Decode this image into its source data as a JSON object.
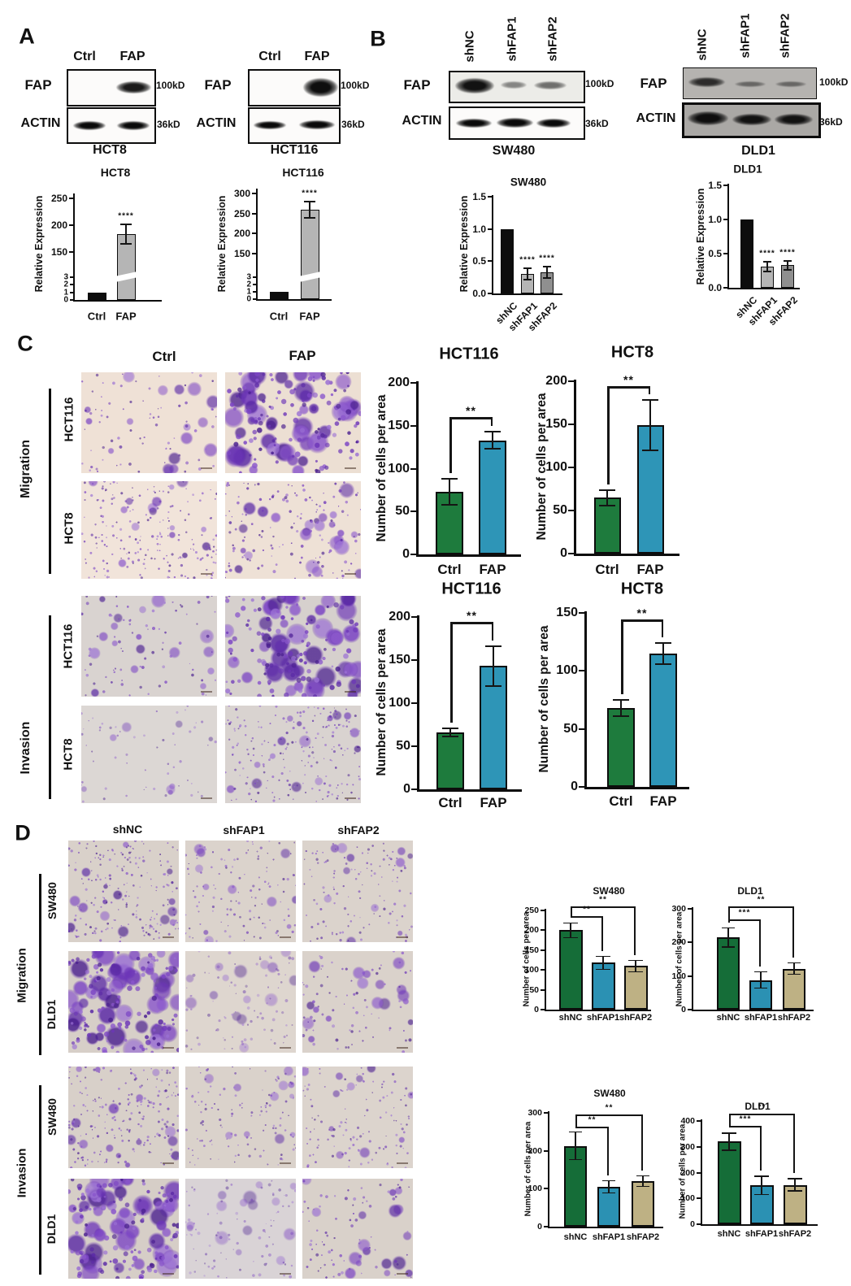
{
  "figure": {
    "panel_a": {
      "label": "A",
      "groups": [
        {
          "cell_line": "HCT8",
          "lanes": [
            "Ctrl",
            "FAP"
          ],
          "rows": [
            {
              "protein": "FAP",
              "mw": "100kD"
            },
            {
              "protein": "ACTIN",
              "mw": "36kD"
            }
          ]
        },
        {
          "cell_line": "HCT116",
          "lanes": [
            "Ctrl",
            "FAP"
          ],
          "rows": [
            {
              "protein": "FAP",
              "mw": "100kD"
            },
            {
              "protein": "ACTIN",
              "mw": "36kD"
            }
          ]
        }
      ]
    },
    "panel_b": {
      "label": "B",
      "groups": [
        {
          "cell_line": "SW480",
          "lanes": [
            "shNC",
            "shFAP1",
            "shFAP2"
          ],
          "rows": [
            {
              "protein": "FAP",
              "mw": "100kD"
            },
            {
              "protein": "ACTIN",
              "mw": "36kD"
            }
          ]
        },
        {
          "cell_line": "DLD1",
          "lanes": [
            "shNC",
            "shFAP1",
            "shFAP2"
          ],
          "rows": [
            {
              "protein": "FAP",
              "mw": "100kD"
            },
            {
              "protein": "ACTIN",
              "mw": "36kD"
            }
          ]
        }
      ]
    },
    "panel_c": {
      "label": "C",
      "col_headers": [
        "Ctrl",
        "FAP"
      ],
      "groups": [
        {
          "name": "Migration",
          "rows": [
            "HCT116",
            "HCT8"
          ]
        },
        {
          "name": "Invasion",
          "rows": [
            "HCT116",
            "HCT8"
          ]
        }
      ],
      "images": [
        {
          "assay": "Migration",
          "cell_line": "HCT116",
          "condition": "Ctrl",
          "density": "medium-clusters",
          "bg": "#efe1d6"
        },
        {
          "assay": "Migration",
          "cell_line": "HCT116",
          "condition": "FAP",
          "density": "very-dense",
          "bg": "#ecdfd3"
        },
        {
          "assay": "Migration",
          "cell_line": "HCT8",
          "condition": "Ctrl",
          "density": "dense-fine",
          "bg": "#f1e4da"
        },
        {
          "assay": "Migration",
          "cell_line": "HCT8",
          "condition": "FAP",
          "density": "dense",
          "bg": "#eee1d6"
        },
        {
          "assay": "Invasion",
          "cell_line": "HCT116",
          "condition": "Ctrl",
          "density": "medium-clusters",
          "bg": "#d9d3d0"
        },
        {
          "assay": "Invasion",
          "cell_line": "HCT116",
          "condition": "FAP",
          "density": "very-dense",
          "bg": "#d6d0cd"
        },
        {
          "assay": "Invasion",
          "cell_line": "HCT8",
          "condition": "Ctrl",
          "density": "sparse",
          "bg": "#dcd7d4"
        },
        {
          "assay": "Invasion",
          "cell_line": "HCT8",
          "condition": "FAP",
          "density": "dense-fine",
          "bg": "#d9d3d0"
        }
      ]
    },
    "panel_d": {
      "label": "D",
      "col_headers": [
        "shNC",
        "shFAP1",
        "shFAP2"
      ],
      "groups": [
        {
          "name": "Migration",
          "rows": [
            "SW480",
            "DLD1"
          ]
        },
        {
          "name": "Invasion",
          "rows": [
            "SW480",
            "DLD1"
          ]
        }
      ],
      "images": [
        {
          "assay": "Migration",
          "cell_line": "SW480",
          "condition": "shNC",
          "density": "dense-fine",
          "bg": "#d9d1ca"
        },
        {
          "assay": "Migration",
          "cell_line": "SW480",
          "condition": "shFAP1",
          "density": "medium",
          "bg": "#dbd3cc"
        },
        {
          "assay": "Migration",
          "cell_line": "SW480",
          "condition": "shFAP2",
          "density": "medium",
          "bg": "#dbd3cc"
        },
        {
          "assay": "Migration",
          "cell_line": "DLD1",
          "condition": "shNC",
          "density": "very-dense",
          "bg": "#d7cfc8"
        },
        {
          "assay": "Migration",
          "cell_line": "DLD1",
          "condition": "shFAP1",
          "density": "medium-light",
          "bg": "#ded6cf"
        },
        {
          "assay": "Migration",
          "cell_line": "DLD1",
          "condition": "shFAP2",
          "density": "medium-clusters",
          "bg": "#dad2cb"
        },
        {
          "assay": "Invasion",
          "cell_line": "SW480",
          "condition": "shNC",
          "density": "dense-fine",
          "bg": "#d8d0c9"
        },
        {
          "assay": "Invasion",
          "cell_line": "SW480",
          "condition": "shFAP1",
          "density": "medium",
          "bg": "#dad2cb"
        },
        {
          "assay": "Invasion",
          "cell_line": "SW480",
          "condition": "shFAP2",
          "density": "medium",
          "bg": "#dcd4cd"
        },
        {
          "assay": "Invasion",
          "cell_line": "DLD1",
          "condition": "shNC",
          "density": "very-dense",
          "bg": "#d6cec7"
        },
        {
          "assay": "Invasion",
          "cell_line": "DLD1",
          "condition": "shFAP1",
          "density": "medium-light",
          "bg": "#d9d3d6"
        },
        {
          "assay": "Invasion",
          "cell_line": "DLD1",
          "condition": "shFAP2",
          "density": "medium-clusters",
          "bg": "#d9d1ca"
        }
      ]
    }
  },
  "chart_data": [
    {
      "id": "a-hct8",
      "type": "bar",
      "title": "HCT8",
      "ylabel": "Relative Expression",
      "categories": [
        "Ctrl",
        "FAP"
      ],
      "values": [
        1,
        183
      ],
      "errors": [
        0,
        20
      ],
      "bar_colors": [
        "#0d0d0d",
        "#b5b5b5"
      ],
      "broken_axis": true,
      "lower_ticks": [
        0,
        1,
        2,
        3
      ],
      "upper_ticks": [
        150,
        200,
        250
      ],
      "ylim": [
        0,
        250
      ],
      "sig": [
        {
          "bar": 1,
          "text": "****"
        }
      ]
    },
    {
      "id": "a-hct116",
      "type": "bar",
      "title": "HCT116",
      "ylabel": "Relative Expression",
      "categories": [
        "Ctrl",
        "FAP"
      ],
      "values": [
        1,
        260
      ],
      "errors": [
        0,
        22
      ],
      "bar_colors": [
        "#0d0d0d",
        "#b5b5b5"
      ],
      "broken_axis": true,
      "lower_ticks": [
        0,
        1,
        2,
        3
      ],
      "upper_ticks": [
        150,
        200,
        250,
        300
      ],
      "ylim": [
        0,
        300
      ],
      "sig": [
        {
          "bar": 1,
          "text": "****"
        }
      ]
    },
    {
      "id": "b-sw480",
      "type": "bar",
      "title": "SW480",
      "ylabel": "Relative Expression",
      "categories": [
        "shNC",
        "shFAP1",
        "shFAP2"
      ],
      "values": [
        1.0,
        0.3,
        0.33
      ],
      "errors": [
        0,
        0.1,
        0.1
      ],
      "bar_colors": [
        "#0d0d0d",
        "#b5b5b5",
        "#8f8f8f"
      ],
      "ticks": [
        0,
        0.5,
        1,
        1.5
      ],
      "tick_labels": [
        "0.0",
        "0.5",
        "1.0",
        "1.5"
      ],
      "ylim": [
        0,
        1.5
      ],
      "x_rotate": 45,
      "sig": [
        {
          "bar": 1,
          "text": "****"
        },
        {
          "bar": 2,
          "text": "****"
        }
      ]
    },
    {
      "id": "b-dld1",
      "type": "bar",
      "title": "DLD1",
      "ylabel": "Relative Expression",
      "categories": [
        "shNC",
        "shFAP1",
        "shFAP2"
      ],
      "values": [
        1.0,
        0.31,
        0.33
      ],
      "errors": [
        0,
        0.08,
        0.08
      ],
      "bar_colors": [
        "#0d0d0d",
        "#b5b5b5",
        "#8f8f8f"
      ],
      "ticks": [
        0,
        0.5,
        1,
        1.5
      ],
      "tick_labels": [
        "0.0",
        "0.5",
        "1.0",
        "1.5"
      ],
      "ylim": [
        0,
        1.5
      ],
      "x_rotate": 45,
      "sig": [
        {
          "bar": 1,
          "text": "****"
        },
        {
          "bar": 2,
          "text": "****"
        }
      ]
    },
    {
      "id": "c-mig-hct116",
      "type": "bar",
      "title": "HCT116",
      "ylabel": "Number of cells per area",
      "categories": [
        "Ctrl",
        "FAP"
      ],
      "values": [
        73,
        133
      ],
      "errors": [
        16,
        11
      ],
      "bar_colors": [
        "#1e7b3d",
        "#2e95b7"
      ],
      "ticks": [
        0,
        50,
        100,
        150,
        200
      ],
      "ylim": [
        0,
        200
      ],
      "sig": [
        {
          "from": 0,
          "to": 1,
          "text": "**"
        }
      ]
    },
    {
      "id": "c-mig-hct8",
      "type": "bar",
      "title": "HCT8",
      "ylabel": "Number of cells per area",
      "categories": [
        "Ctrl",
        "FAP"
      ],
      "values": [
        65,
        149
      ],
      "errors": [
        10,
        30
      ],
      "bar_colors": [
        "#1e7b3d",
        "#2e95b7"
      ],
      "ticks": [
        0,
        50,
        100,
        150,
        200
      ],
      "ylim": [
        0,
        200
      ],
      "sig": [
        {
          "from": 0,
          "to": 1,
          "text": "**"
        }
      ]
    },
    {
      "id": "c-inv-hct116",
      "type": "bar",
      "title": "HCT116",
      "ylabel": "Number of cells per area",
      "categories": [
        "Ctrl",
        "FAP"
      ],
      "values": [
        66,
        143
      ],
      "errors": [
        6,
        24
      ],
      "bar_colors": [
        "#1e7b3d",
        "#2e95b7"
      ],
      "ticks": [
        0,
        50,
        100,
        150,
        200
      ],
      "ylim": [
        0,
        200
      ],
      "sig": [
        {
          "from": 0,
          "to": 1,
          "text": "**"
        }
      ]
    },
    {
      "id": "c-inv-hct8",
      "type": "bar",
      "title": "HCT8",
      "ylabel": "Number of cells per area",
      "categories": [
        "Ctrl",
        "FAP"
      ],
      "values": [
        68,
        115
      ],
      "errors": [
        8,
        10
      ],
      "bar_colors": [
        "#1e7b3d",
        "#2e95b7"
      ],
      "ticks": [
        0,
        50,
        100,
        150
      ],
      "ylim": [
        0,
        150
      ],
      "sig": [
        {
          "from": 0,
          "to": 1,
          "text": "**"
        }
      ]
    },
    {
      "id": "d-mig-sw480",
      "type": "bar",
      "title": "SW480",
      "ylabel": "Number of cells per area",
      "categories": [
        "shNC",
        "shFAP1",
        "shFAP2"
      ],
      "values": [
        200,
        118,
        110
      ],
      "errors": [
        20,
        18,
        16
      ],
      "bar_colors": [
        "#156d38",
        "#2b91b3",
        "#beb184"
      ],
      "ticks": [
        0,
        50,
        100,
        150,
        200,
        250
      ],
      "ylim": [
        0,
        250
      ],
      "sig": [
        {
          "from": 0,
          "to": 1,
          "text": "**"
        },
        {
          "from": 0,
          "to": 2,
          "text": "**"
        }
      ]
    },
    {
      "id": "d-mig-dld1",
      "type": "bar",
      "title": "DLD1",
      "ylabel": "Number of cells per area",
      "categories": [
        "shNC",
        "shFAP1",
        "shFAP2"
      ],
      "values": [
        215,
        88,
        122
      ],
      "errors": [
        30,
        26,
        19
      ],
      "bar_colors": [
        "#156d38",
        "#2b91b3",
        "#beb184"
      ],
      "ticks": [
        0,
        100,
        200,
        300
      ],
      "ylim": [
        0,
        300
      ],
      "sig": [
        {
          "from": 0,
          "to": 1,
          "text": "***"
        },
        {
          "from": 0,
          "to": 2,
          "text": "**"
        }
      ]
    },
    {
      "id": "d-inv-sw480",
      "type": "bar",
      "title": "SW480",
      "ylabel": "Number of cells per area",
      "categories": [
        "shNC",
        "shFAP1",
        "shFAP2"
      ],
      "values": [
        213,
        105,
        120
      ],
      "errors": [
        38,
        18,
        16
      ],
      "bar_colors": [
        "#156d38",
        "#2b91b3",
        "#beb184"
      ],
      "ticks": [
        0,
        100,
        200,
        300
      ],
      "ylim": [
        0,
        300
      ],
      "sig": [
        {
          "from": 0,
          "to": 1,
          "text": "**"
        },
        {
          "from": 0,
          "to": 2,
          "text": "**"
        }
      ]
    },
    {
      "id": "d-inv-dld1",
      "type": "bar",
      "title": "DLD1",
      "ylabel": "Number of cells per area",
      "categories": [
        "shNC",
        "shFAP1",
        "shFAP2"
      ],
      "values": [
        320,
        150,
        152
      ],
      "errors": [
        35,
        38,
        26
      ],
      "bar_colors": [
        "#156d38",
        "#2b91b3",
        "#beb184"
      ],
      "ticks": [
        0,
        100,
        200,
        300,
        400
      ],
      "ylim": [
        0,
        400
      ],
      "sig": [
        {
          "from": 0,
          "to": 1,
          "text": "***"
        },
        {
          "from": 0,
          "to": 2,
          "text": "**"
        }
      ]
    }
  ],
  "colors": {
    "green_bar": "#1e7b3d",
    "teal_bar": "#2e95b7",
    "tan_bar": "#beb184",
    "black_bar": "#0d0d0d",
    "gray_bar": "#b5b5b5",
    "stain_purple": "#6c35b8",
    "membrane_cream": "#efe1d6",
    "membrane_gray": "#d8d0c9"
  }
}
